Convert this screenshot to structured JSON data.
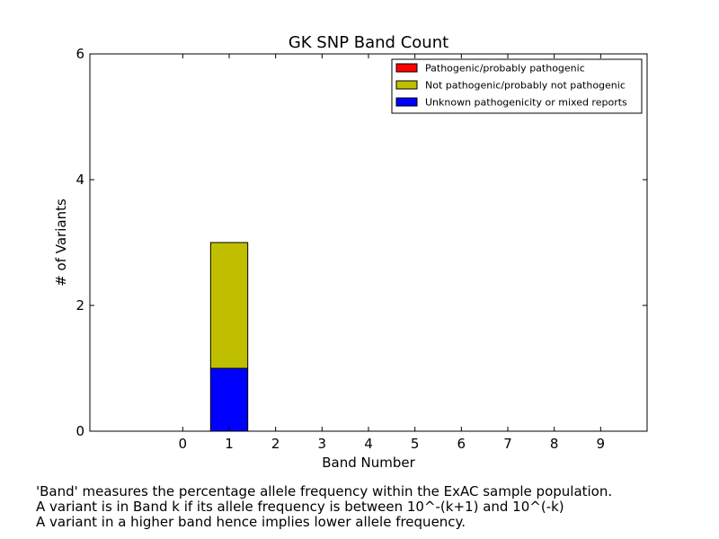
{
  "chart_data": {
    "type": "bar",
    "stacked": true,
    "title": "GK SNP Band Count",
    "xlabel": "Band Number",
    "ylabel": "# of Variants",
    "categories": [
      "0",
      "1",
      "2",
      "3",
      "4",
      "5",
      "6",
      "7",
      "8",
      "9"
    ],
    "xlim": [
      -2,
      10
    ],
    "ylim": [
      0,
      6
    ],
    "yticks": [
      0,
      2,
      4,
      6
    ],
    "series": [
      {
        "name": "Unknown pathogenicity or mixed reports",
        "color": "#0000ff",
        "values": [
          0,
          1,
          0,
          0,
          0,
          0,
          0,
          0,
          0,
          0
        ]
      },
      {
        "name": "Not pathogenic/probably not pathogenic",
        "color": "#bfbf00",
        "values": [
          0,
          2,
          0,
          0,
          0,
          0,
          0,
          0,
          0,
          0
        ]
      },
      {
        "name": "Pathogenic/probably pathogenic",
        "color": "#ff0000",
        "values": [
          0,
          0,
          0,
          0,
          0,
          0,
          0,
          0,
          0,
          0
        ]
      }
    ],
    "legend_order": [
      "Pathogenic/probably pathogenic",
      "Not pathogenic/probably not pathogenic",
      "Unknown pathogenicity or mixed reports"
    ],
    "legend_position": "top-right",
    "grid": false
  },
  "caption": {
    "lines": [
      "'Band' measures the percentage allele frequency within the ExAC sample population.",
      "A variant is in Band k if its allele frequency is between 10^-(k+1) and 10^(-k)",
      "A variant in a higher band hence implies lower allele frequency."
    ]
  }
}
